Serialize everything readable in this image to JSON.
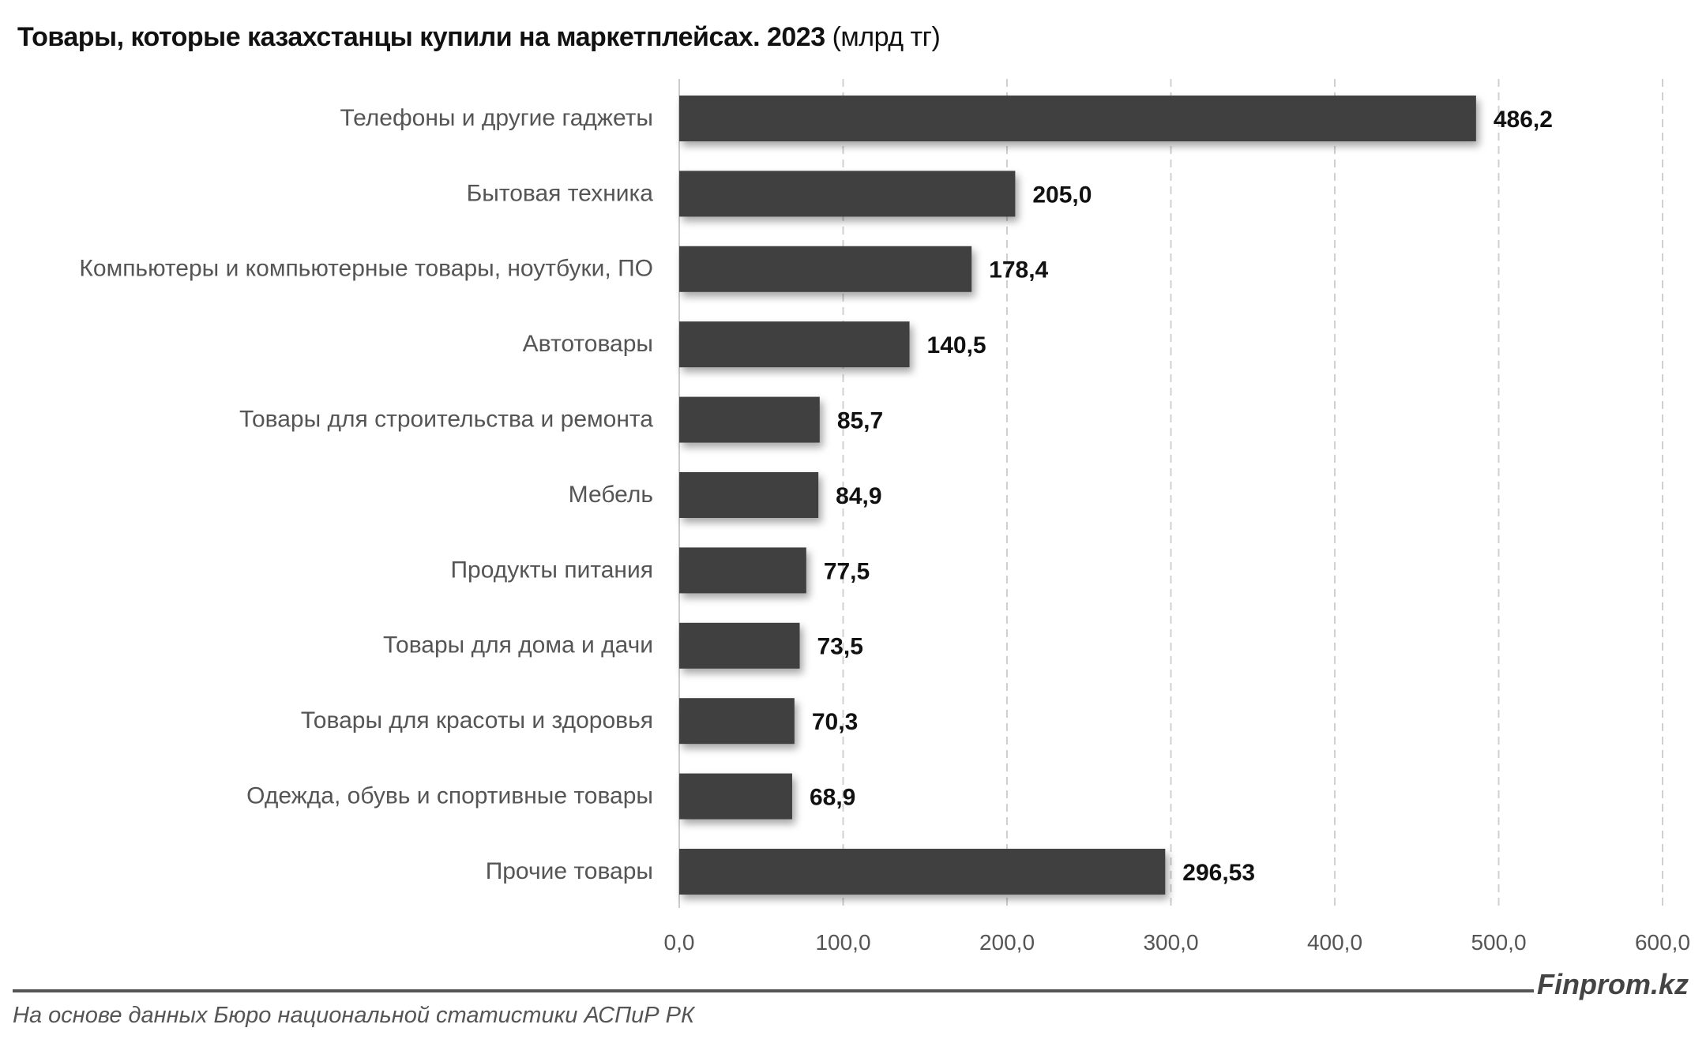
{
  "chart_data": {
    "type": "bar",
    "orientation": "horizontal",
    "title": "Товары, которые казахстанцы купили на маркетплейсах. 2023",
    "unit": "(млрд тг)",
    "categories": [
      "Телефоны и другие гаджеты",
      "Бытовая техника",
      "Компьютеры и компьютерные товары, ноутбуки, ПО",
      "Автотовары",
      "Товары для строительства и ремонта",
      "Мебель",
      "Продукты питания",
      "Товары для дома и дачи",
      "Товары для красоты и здоровья",
      "Одежда, обувь и спортивные товары",
      "Прочие товары"
    ],
    "values": [
      486.2,
      205.0,
      178.4,
      140.5,
      85.7,
      84.9,
      77.5,
      73.5,
      70.3,
      68.9,
      296.53
    ],
    "value_labels": [
      "486,2",
      "205,0",
      "178,4",
      "140,5",
      "85,7",
      "84,9",
      "77,5",
      "73,5",
      "70,3",
      "68,9",
      "296,53"
    ],
    "xlim": [
      0,
      600
    ],
    "x_ticks": [
      "0,0",
      "100,0",
      "200,0",
      "300,0",
      "400,0",
      "500,0",
      "600,0"
    ],
    "grid": "vertical dashed",
    "bar_color": "#404040"
  },
  "footer": {
    "brand": "Finprom.kz",
    "source": "На основе данных Бюро национальной статистики АСПиР РК"
  }
}
